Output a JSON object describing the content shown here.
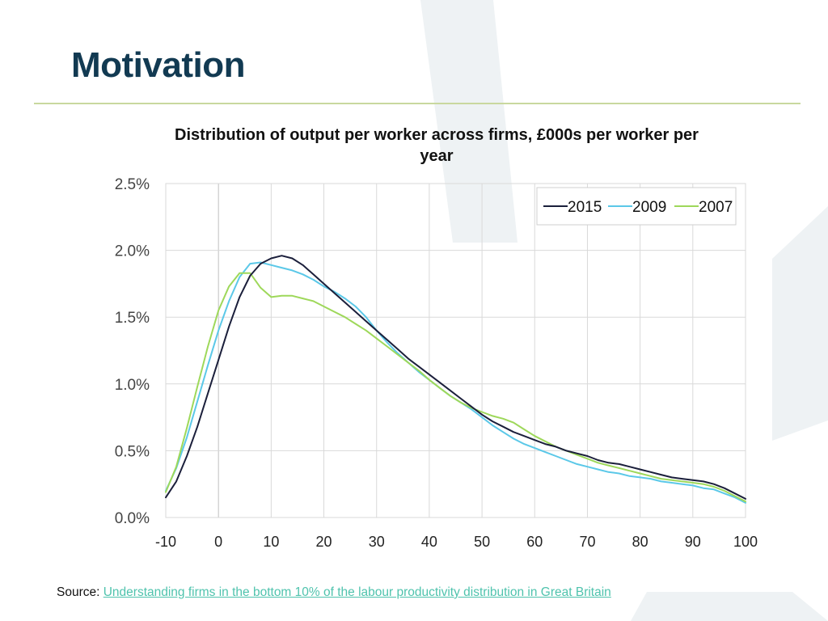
{
  "slide": {
    "title": "Motivation",
    "source_label": "Source:",
    "source_link_text": "Understanding firms in the bottom 10% of the labour productivity distribution in Great Britain"
  },
  "colors": {
    "title": "#123a52",
    "rule": "#c9d89e",
    "link": "#4fc3ad",
    "background_shape": "#e9eef1"
  },
  "chart_data": {
    "type": "line",
    "title": "Distribution of output per worker across firms, £000s per worker per year",
    "xlabel": "",
    "ylabel": "",
    "xlim": [
      -10,
      100
    ],
    "ylim": [
      0,
      0.025
    ],
    "x_ticks": [
      "-10",
      "0",
      "10",
      "20",
      "30",
      "40",
      "50",
      "60",
      "70",
      "80",
      "90",
      "100"
    ],
    "y_ticks": [
      "0.0%",
      "0.5%",
      "1.0%",
      "1.5%",
      "2.0%",
      "2.5%"
    ],
    "grid": true,
    "legend_position": "top-right",
    "series": [
      {
        "name": "2015",
        "color": "#1b1f3b",
        "x": [
          -10,
          -8,
          -6,
          -4,
          -2,
          0,
          2,
          4,
          6,
          8,
          10,
          12,
          14,
          16,
          18,
          20,
          22,
          24,
          26,
          28,
          30,
          32,
          34,
          36,
          38,
          40,
          42,
          44,
          46,
          48,
          50,
          52,
          54,
          56,
          58,
          60,
          62,
          64,
          66,
          68,
          70,
          72,
          74,
          76,
          78,
          80,
          82,
          84,
          86,
          88,
          90,
          92,
          94,
          96,
          98,
          100
        ],
        "values": [
          0.0015,
          0.0027,
          0.0046,
          0.0068,
          0.0093,
          0.0118,
          0.0143,
          0.0165,
          0.0181,
          0.019,
          0.0194,
          0.0196,
          0.0194,
          0.0189,
          0.0182,
          0.0175,
          0.0168,
          0.0161,
          0.0154,
          0.0147,
          0.014,
          0.0133,
          0.0126,
          0.0119,
          0.0113,
          0.0107,
          0.0101,
          0.0095,
          0.0089,
          0.0083,
          0.0077,
          0.0072,
          0.0068,
          0.0064,
          0.0061,
          0.0058,
          0.0055,
          0.0053,
          0.005,
          0.0048,
          0.0046,
          0.0043,
          0.0041,
          0.004,
          0.0038,
          0.0036,
          0.0034,
          0.0032,
          0.003,
          0.0029,
          0.0028,
          0.0027,
          0.0025,
          0.0022,
          0.0018,
          0.0014
        ]
      },
      {
        "name": "2009",
        "color": "#5bc8e8",
        "x": [
          -10,
          -8,
          -6,
          -4,
          -2,
          0,
          2,
          4,
          6,
          8,
          10,
          12,
          14,
          16,
          18,
          20,
          22,
          24,
          26,
          28,
          30,
          32,
          34,
          36,
          38,
          40,
          42,
          44,
          46,
          48,
          50,
          52,
          54,
          56,
          58,
          60,
          62,
          64,
          66,
          68,
          70,
          72,
          74,
          76,
          78,
          80,
          82,
          84,
          86,
          88,
          90,
          92,
          94,
          96,
          98,
          100
        ],
        "values": [
          0.002,
          0.0037,
          0.006,
          0.0087,
          0.0114,
          0.014,
          0.0162,
          0.018,
          0.019,
          0.0191,
          0.0189,
          0.0187,
          0.0185,
          0.0182,
          0.0178,
          0.0173,
          0.0169,
          0.0164,
          0.0158,
          0.015,
          0.014,
          0.0131,
          0.0123,
          0.0116,
          0.0109,
          0.0103,
          0.0097,
          0.0091,
          0.0086,
          0.0081,
          0.0075,
          0.0069,
          0.0064,
          0.0059,
          0.0055,
          0.0052,
          0.0049,
          0.0046,
          0.0043,
          0.004,
          0.0038,
          0.0036,
          0.0034,
          0.0033,
          0.0031,
          0.003,
          0.0029,
          0.0027,
          0.0026,
          0.0025,
          0.0024,
          0.0022,
          0.0021,
          0.0018,
          0.0015,
          0.0011
        ]
      },
      {
        "name": "2007",
        "color": "#9ed85a",
        "x": [
          -10,
          -8,
          -6,
          -4,
          -2,
          0,
          2,
          4,
          6,
          8,
          10,
          12,
          14,
          16,
          18,
          20,
          22,
          24,
          26,
          28,
          30,
          32,
          34,
          36,
          38,
          40,
          42,
          44,
          46,
          48,
          50,
          52,
          54,
          56,
          58,
          60,
          62,
          64,
          66,
          68,
          70,
          72,
          74,
          76,
          78,
          80,
          82,
          84,
          86,
          88,
          90,
          92,
          94,
          96,
          98,
          100
        ],
        "values": [
          0.0019,
          0.0038,
          0.0067,
          0.0098,
          0.0128,
          0.0155,
          0.0173,
          0.0183,
          0.0183,
          0.0172,
          0.0165,
          0.0166,
          0.0166,
          0.0164,
          0.0162,
          0.0158,
          0.0154,
          0.015,
          0.0145,
          0.014,
          0.0134,
          0.0128,
          0.0122,
          0.0116,
          0.011,
          0.0103,
          0.0097,
          0.0091,
          0.0086,
          0.0082,
          0.0079,
          0.0076,
          0.0074,
          0.0071,
          0.0066,
          0.0061,
          0.0057,
          0.0053,
          0.005,
          0.0047,
          0.0044,
          0.0041,
          0.0039,
          0.0037,
          0.0035,
          0.0033,
          0.0031,
          0.0029,
          0.0028,
          0.0027,
          0.0026,
          0.0025,
          0.0023,
          0.002,
          0.0016,
          0.0012
        ]
      }
    ]
  }
}
